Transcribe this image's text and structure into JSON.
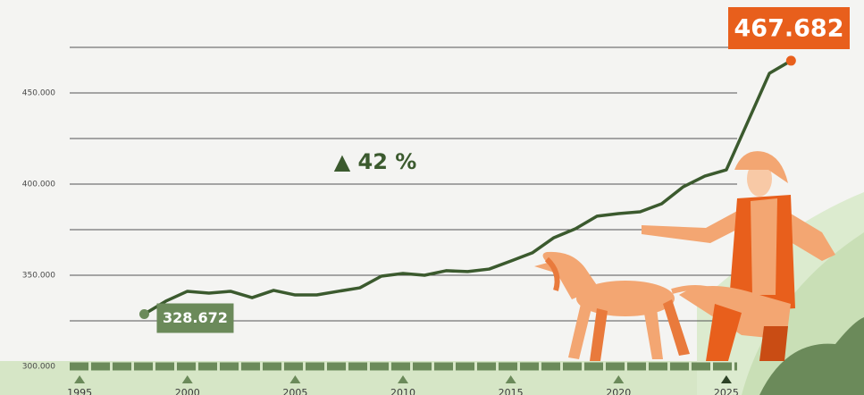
{
  "chart_data": {
    "type": "line",
    "annotation": "▲ 42 %",
    "x": [
      1998,
      1999,
      2000,
      2001,
      2002,
      2003,
      2004,
      2005,
      2006,
      2007,
      2008,
      2009,
      2010,
      2011,
      2012,
      2013,
      2014,
      2015,
      2016,
      2017,
      2018,
      2019,
      2020,
      2021,
      2022,
      2023,
      2024,
      2025,
      2026,
      2027,
      2028
    ],
    "series": [
      {
        "color": "#3b5a2e",
        "values": [
          328672,
          335800,
          341200,
          340200,
          341200,
          337700,
          341700,
          339200,
          339200,
          341200,
          343100,
          349500,
          351000,
          350000,
          352500,
          352000,
          353400,
          357800,
          362300,
          370600,
          375500,
          382400,
          383800,
          384800,
          389200,
          398500,
          404400,
          407800,
          434300,
          460800,
          467682
        ],
        "value_labels": [
          "328.672",
          null,
          null,
          null,
          null,
          null,
          null,
          null,
          null,
          null,
          null,
          null,
          null,
          null,
          null,
          null,
          null,
          null,
          null,
          null,
          null,
          null,
          null,
          null,
          null,
          null,
          null,
          null,
          null,
          null,
          "467.682"
        ]
      }
    ],
    "xlim": [
      1994.54,
      2025.5
    ],
    "xticks": [
      1995,
      2000,
      2005,
      2010,
      2015,
      2020,
      2025
    ],
    "ylim": [
      300000,
      475000
    ],
    "yticks": [
      {
        "value": 300000,
        "label": "300.000"
      },
      {
        "value": 350000,
        "label": "350.000"
      },
      {
        "value": 400000,
        "label": "400.000"
      },
      {
        "value": 450000,
        "label": "450.000"
      }
    ],
    "minor_yticks": [
      325000,
      375000,
      425000,
      475000
    ],
    "grid": true
  }
}
